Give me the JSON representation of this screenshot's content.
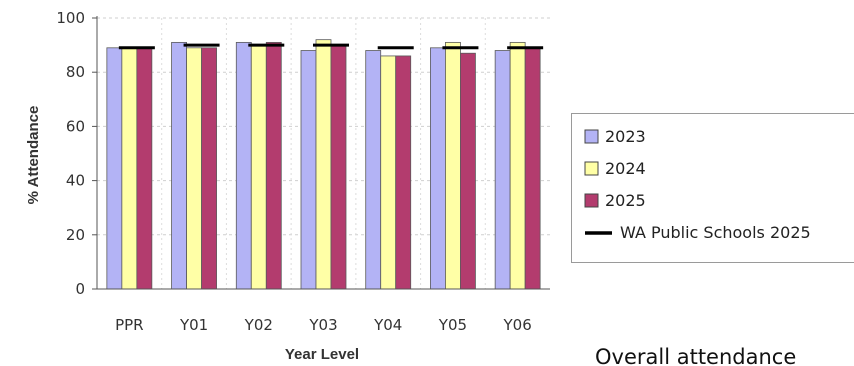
{
  "chart_data": {
    "type": "bar",
    "title": "",
    "xlabel": "Year Level",
    "ylabel": "% Attendance",
    "ylim": [
      0,
      100
    ],
    "yticks": [
      0,
      20,
      40,
      60,
      80,
      100
    ],
    "grid": true,
    "legend_position": "right",
    "categories": [
      "PPR",
      "Y01",
      "Y02",
      "Y03",
      "Y04",
      "Y05",
      "Y06"
    ],
    "series": [
      {
        "name": "2023",
        "color": "#b3b3f5",
        "values": [
          89,
          91,
          91,
          88,
          88,
          89,
          88
        ]
      },
      {
        "name": "2024",
        "color": "#ffffa6",
        "values": [
          89,
          89,
          90,
          92,
          86,
          91,
          91
        ]
      },
      {
        "name": "2025",
        "color": "#b33c6e",
        "values": [
          89,
          89,
          91,
          90,
          86,
          87,
          89
        ]
      }
    ],
    "reference": {
      "name": "WA Public Schools 2025",
      "color": "#000000",
      "values": [
        89,
        90,
        90,
        90,
        89,
        89,
        89
      ]
    }
  },
  "footer": {
    "text": "Overall attendance"
  }
}
